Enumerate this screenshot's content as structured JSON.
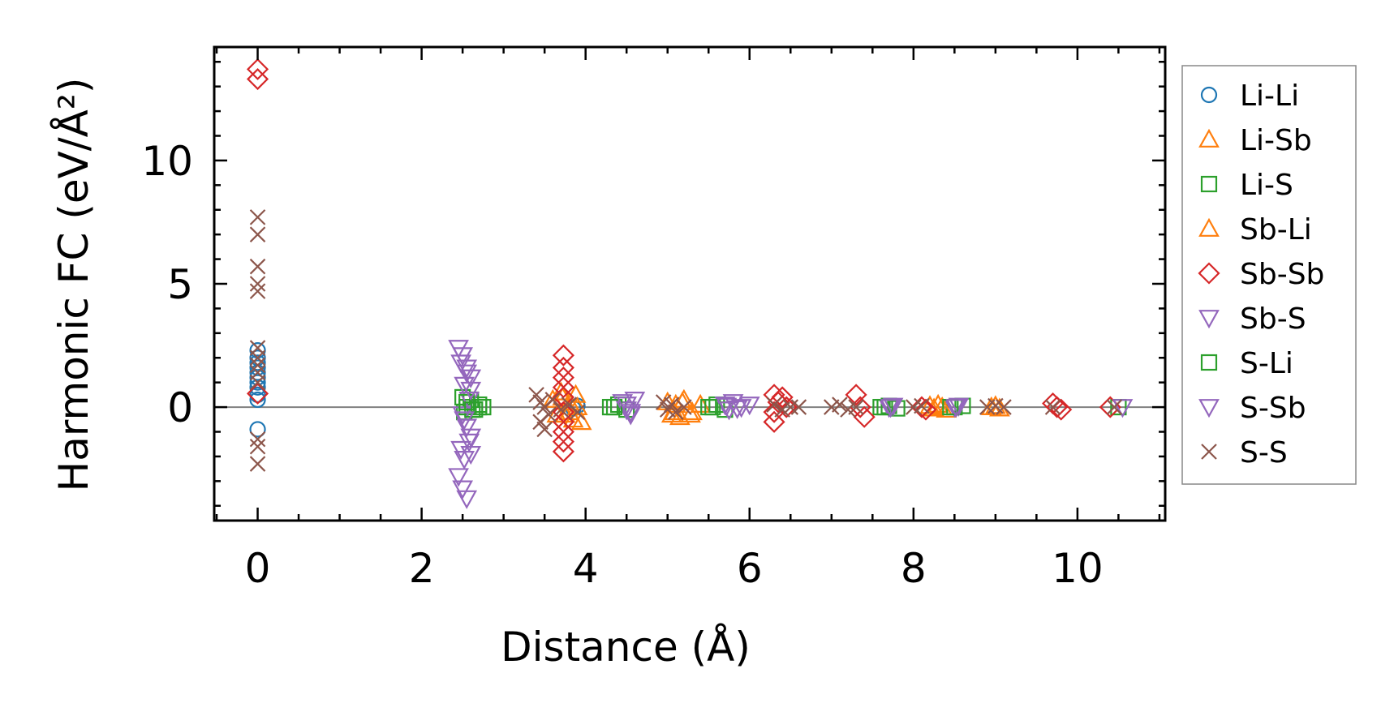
{
  "chart_data": {
    "type": "scatter",
    "title": "",
    "xlabel": "Distance (Å)",
    "ylabel": "Harmonic FC (eV/Å²)",
    "xlim": [
      -0.53,
      11.07
    ],
    "ylim": [
      -4.6,
      14.6
    ],
    "xticks": [
      0,
      2,
      4,
      6,
      8,
      10
    ],
    "xtick_labels": [
      "0",
      "2",
      "4",
      "6",
      "8",
      "10"
    ],
    "yticks": [
      0,
      5,
      10
    ],
    "ytick_labels": [
      "0",
      "5",
      "10"
    ],
    "reference_line_y": 0,
    "grid": false,
    "legend_position": "right, outside plot",
    "series": [
      {
        "name": "Li-Li",
        "marker": "circle",
        "color": "#1f77b4",
        "points": [
          [
            0,
            2.3
          ],
          [
            0,
            2.0
          ],
          [
            0,
            1.8
          ],
          [
            0,
            1.6
          ],
          [
            0,
            1.4
          ],
          [
            0,
            1.2
          ],
          [
            0,
            1.0
          ],
          [
            0,
            0.8
          ],
          [
            0,
            0.5
          ],
          [
            0,
            0.3
          ],
          [
            0,
            -0.9
          ],
          [
            3.9,
            0.05
          ],
          [
            3.85,
            -0.05
          ]
        ]
      },
      {
        "name": "Li-Sb",
        "marker": "triangle-up",
        "color": "#ff7f0e",
        "points": [
          [
            3.6,
            0.3
          ],
          [
            3.7,
            0.6
          ],
          [
            3.75,
            -0.3
          ],
          [
            3.8,
            0.2
          ],
          [
            3.85,
            -0.5
          ],
          [
            3.9,
            0.0
          ],
          [
            5.0,
            0.2
          ],
          [
            5.05,
            -0.3
          ],
          [
            5.1,
            0.1
          ],
          [
            5.15,
            -0.4
          ],
          [
            5.2,
            0.3
          ],
          [
            5.3,
            -0.2
          ],
          [
            5.4,
            0.1
          ],
          [
            8.2,
            0.05
          ],
          [
            8.25,
            -0.05
          ],
          [
            8.3,
            0.1
          ],
          [
            9.0,
            0.05
          ],
          [
            9.05,
            -0.05
          ]
        ]
      },
      {
        "name": "Li-S",
        "marker": "square",
        "color": "#2ca02c",
        "points": [
          [
            2.5,
            0.4
          ],
          [
            2.52,
            -0.2
          ],
          [
            2.55,
            0.0
          ],
          [
            2.6,
            0.3
          ],
          [
            2.65,
            -0.1
          ],
          [
            2.7,
            0.1
          ],
          [
            2.75,
            0.0
          ],
          [
            4.3,
            0.0
          ],
          [
            4.4,
            0.1
          ],
          [
            4.5,
            -0.1
          ],
          [
            5.5,
            0.0
          ],
          [
            5.6,
            0.1
          ],
          [
            5.7,
            -0.1
          ],
          [
            7.6,
            0.0
          ],
          [
            7.7,
            0.05
          ],
          [
            7.8,
            -0.05
          ],
          [
            8.5,
            0.0
          ],
          [
            8.6,
            0.05
          ],
          [
            10.5,
            0.0
          ]
        ]
      },
      {
        "name": "Sb-Li",
        "marker": "triangle-up",
        "color": "#ff7f0e",
        "points": [
          [
            3.65,
            -0.3
          ],
          [
            3.72,
            0.4
          ],
          [
            3.8,
            -0.2
          ],
          [
            3.88,
            0.5
          ],
          [
            3.95,
            -0.6
          ],
          [
            5.08,
            -0.2
          ],
          [
            5.18,
            0.2
          ],
          [
            5.28,
            -0.3
          ],
          [
            8.35,
            0.0
          ],
          [
            8.4,
            -0.1
          ],
          [
            8.95,
            0.0
          ]
        ]
      },
      {
        "name": "Sb-Sb",
        "marker": "diamond",
        "color": "#d62728",
        "points": [
          [
            0,
            13.7
          ],
          [
            0,
            13.3
          ],
          [
            0,
            0.55
          ],
          [
            3.73,
            2.1
          ],
          [
            3.73,
            1.6
          ],
          [
            3.73,
            1.2
          ],
          [
            3.73,
            0.8
          ],
          [
            3.73,
            0.4
          ],
          [
            3.73,
            -0.2
          ],
          [
            3.73,
            -0.6
          ],
          [
            3.73,
            -1.0
          ],
          [
            3.73,
            -1.4
          ],
          [
            3.73,
            -1.8
          ],
          [
            6.3,
            0.5
          ],
          [
            6.35,
            0.2
          ],
          [
            6.3,
            -0.2
          ],
          [
            6.3,
            -0.6
          ],
          [
            6.4,
            0.4
          ],
          [
            6.45,
            0.0
          ],
          [
            7.3,
            0.5
          ],
          [
            7.35,
            0.0
          ],
          [
            7.4,
            -0.4
          ],
          [
            8.1,
            0.0
          ],
          [
            8.15,
            -0.1
          ],
          [
            9.7,
            0.15
          ],
          [
            9.75,
            0.0
          ],
          [
            9.8,
            -0.1
          ],
          [
            10.4,
            0.0
          ]
        ]
      },
      {
        "name": "Sb-S",
        "marker": "triangle-down",
        "color": "#9467bd",
        "points": [
          [
            2.45,
            2.4
          ],
          [
            2.5,
            2.1
          ],
          [
            2.48,
            1.8
          ],
          [
            2.55,
            1.6
          ],
          [
            2.6,
            1.2
          ],
          [
            2.52,
            0.9
          ],
          [
            2.58,
            0.3
          ],
          [
            2.5,
            -0.3
          ],
          [
            2.55,
            -0.8
          ],
          [
            2.6,
            -1.2
          ],
          [
            2.48,
            -1.7
          ],
          [
            2.52,
            -2.1
          ],
          [
            2.45,
            -2.8
          ],
          [
            2.5,
            -3.3
          ],
          [
            2.55,
            -3.7
          ],
          [
            4.45,
            0.2
          ],
          [
            4.5,
            -0.1
          ],
          [
            4.6,
            0.3
          ],
          [
            4.55,
            -0.3
          ],
          [
            5.7,
            0.1
          ],
          [
            5.75,
            -0.1
          ],
          [
            5.8,
            0.2
          ],
          [
            5.9,
            0.0
          ],
          [
            6.0,
            0.1
          ],
          [
            7.7,
            0.0
          ],
          [
            7.75,
            0.05
          ],
          [
            8.5,
            0.0
          ],
          [
            8.55,
            0.05
          ],
          [
            10.55,
            0.0
          ]
        ]
      },
      {
        "name": "S-Li",
        "marker": "square",
        "color": "#2ca02c",
        "points": [
          [
            2.55,
            0.2
          ],
          [
            2.62,
            -0.1
          ],
          [
            2.7,
            0.0
          ],
          [
            4.35,
            0.0
          ],
          [
            5.55,
            0.0
          ],
          [
            7.65,
            0.0
          ],
          [
            8.45,
            0.0
          ]
        ]
      },
      {
        "name": "S-Sb",
        "marker": "triangle-down",
        "color": "#9467bd",
        "points": [
          [
            2.55,
            1.4
          ],
          [
            2.6,
            0.7
          ],
          [
            2.52,
            -0.5
          ],
          [
            2.58,
            -1.4
          ],
          [
            2.6,
            -1.9
          ],
          [
            4.5,
            0.1
          ],
          [
            4.55,
            -0.2
          ],
          [
            5.72,
            0.05
          ],
          [
            5.85,
            -0.05
          ],
          [
            7.72,
            0.0
          ],
          [
            8.52,
            0.0
          ]
        ]
      },
      {
        "name": "S-S",
        "marker": "x",
        "color": "#8c564b",
        "points": [
          [
            0,
            7.7
          ],
          [
            0,
            7.0
          ],
          [
            0,
            5.7
          ],
          [
            0,
            5.0
          ],
          [
            0,
            4.7
          ],
          [
            0,
            2.4
          ],
          [
            0,
            2.0
          ],
          [
            0,
            1.7
          ],
          [
            0,
            1.4
          ],
          [
            0,
            1.0
          ],
          [
            0,
            -1.3
          ],
          [
            0,
            -1.6
          ],
          [
            0,
            -2.3
          ],
          [
            3.4,
            0.5
          ],
          [
            3.45,
            0.2
          ],
          [
            3.5,
            0.0
          ],
          [
            3.55,
            -0.3
          ],
          [
            3.45,
            -0.6
          ],
          [
            3.5,
            -0.9
          ],
          [
            3.6,
            0.3
          ],
          [
            3.7,
            -0.1
          ],
          [
            3.8,
            0.1
          ],
          [
            3.9,
            -0.2
          ],
          [
            4.95,
            0.2
          ],
          [
            5.0,
            -0.1
          ],
          [
            5.05,
            0.1
          ],
          [
            5.1,
            -0.2
          ],
          [
            5.2,
            0.0
          ],
          [
            6.3,
            0.1
          ],
          [
            6.4,
            -0.1
          ],
          [
            6.5,
            0.0
          ],
          [
            6.6,
            0.0
          ],
          [
            7.0,
            0.0
          ],
          [
            7.1,
            0.1
          ],
          [
            7.2,
            -0.1
          ],
          [
            7.3,
            0.0
          ],
          [
            8.0,
            0.0
          ],
          [
            8.1,
            0.05
          ],
          [
            8.9,
            0.0
          ],
          [
            9.0,
            0.05
          ],
          [
            9.1,
            0.0
          ],
          [
            9.7,
            0.0
          ],
          [
            10.45,
            0.0
          ]
        ]
      }
    ]
  }
}
